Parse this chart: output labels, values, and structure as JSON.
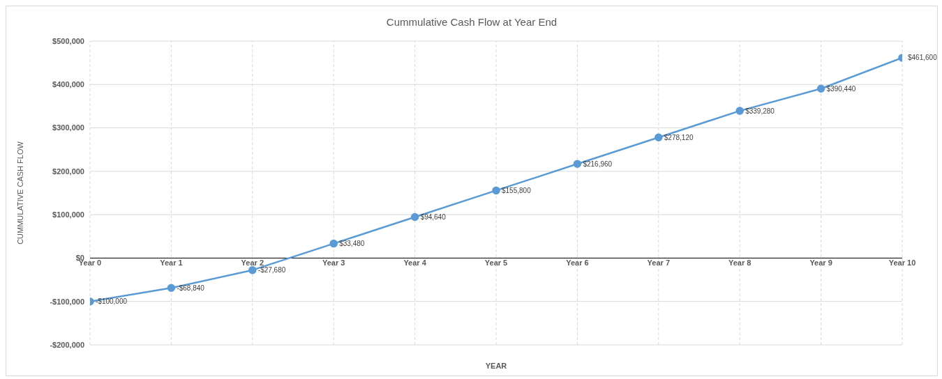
{
  "chart_data": {
    "type": "line",
    "title": "Cummulative Cash Flow at Year End",
    "xlabel": "YEAR",
    "ylabel": "CUMMULATIVE CASH FLOW",
    "categories": [
      "Year 0",
      "Year 1",
      "Year 2",
      "Year 3",
      "Year 4",
      "Year 5",
      "Year 6",
      "Year 7",
      "Year 8",
      "Year 9",
      "Year 10"
    ],
    "series": [
      {
        "color": "#5b9bd5",
        "values": [
          -100000,
          -68840,
          -27680,
          33480,
          94640,
          155800,
          216960,
          278120,
          339280,
          390440,
          461600
        ],
        "value_labels": [
          "-$100,000",
          "-$68,840",
          "-$27,680",
          "$33,480",
          "$94,640",
          "$155,800",
          "$216,960",
          "$278,120",
          "$339,280",
          "$390,440",
          "$461,600"
        ]
      }
    ],
    "ylim": [
      -200000,
      500000
    ],
    "yticks": [
      {
        "value": -200000,
        "label": "-$200,000"
      },
      {
        "value": -100000,
        "label": "-$100,000"
      },
      {
        "value": 0,
        "label": "$0"
      },
      {
        "value": 100000,
        "label": "$100,000"
      },
      {
        "value": 200000,
        "label": "$200,000"
      },
      {
        "value": 300000,
        "label": "$300,000"
      },
      {
        "value": 400000,
        "label": "$400,000"
      },
      {
        "value": 500000,
        "label": "$500,000"
      }
    ],
    "grid": true,
    "marker": "circle",
    "line_style": "solid"
  }
}
